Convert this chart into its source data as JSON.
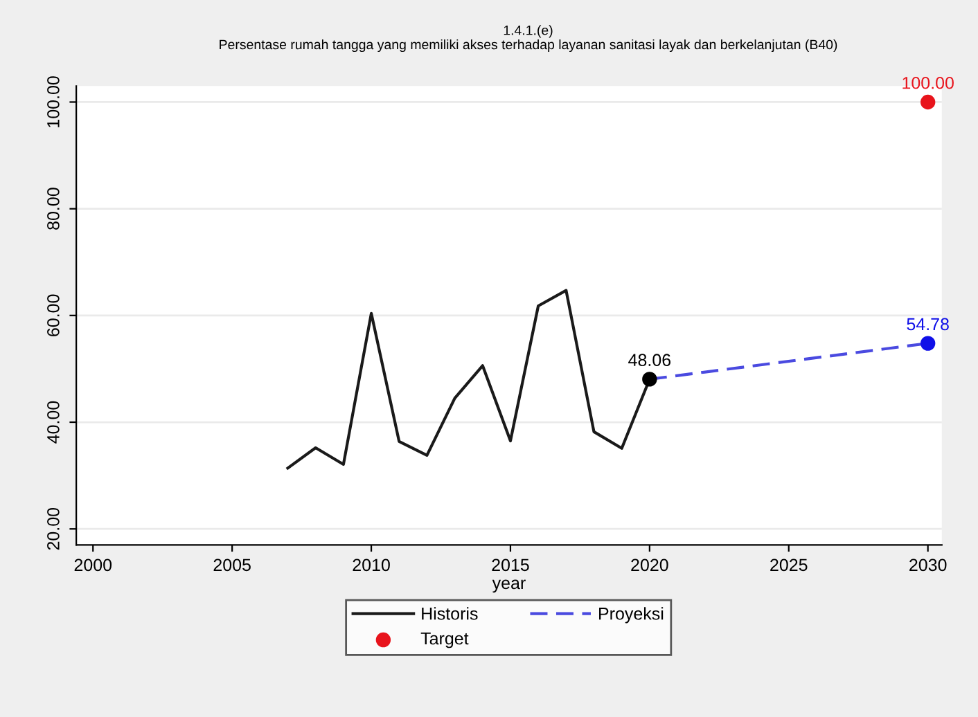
{
  "chart_data": {
    "type": "line",
    "title": "1.4.1.(e)",
    "subtitle": "Persentase rumah tangga yang memiliki akses terhadap layanan sanitasi layak dan berkelanjutan (B40)",
    "xlabel": "year",
    "xlim": [
      1999.4,
      2030.5
    ],
    "xticks": [
      2000,
      2005,
      2010,
      2015,
      2020,
      2025,
      2030
    ],
    "ylim": [
      17,
      103
    ],
    "yticks": [
      {
        "value": 20,
        "label": "20.00"
      },
      {
        "value": 40,
        "label": "40.00"
      },
      {
        "value": 60,
        "label": "60.00"
      },
      {
        "value": 80,
        "label": "80.00"
      },
      {
        "value": 100,
        "label": "100.00"
      }
    ],
    "grid": "y",
    "legend": "bottom",
    "series": [
      {
        "name": "Historis",
        "color": "#1a1a1a",
        "x": [
          2007,
          2008,
          2009,
          2010,
          2011,
          2012,
          2013,
          2014,
          2015,
          2016,
          2017,
          2018,
          2019,
          2020
        ],
        "values": [
          31.4,
          35.2,
          32.1,
          60.4,
          36.4,
          33.8,
          44.5,
          50.6,
          36.5,
          61.8,
          64.7,
          38.2,
          35.1,
          48.06
        ]
      },
      {
        "name": "Proyeksi",
        "line_style": "dashed",
        "color": "#4a4ae0",
        "x": [
          2020,
          2030
        ],
        "values": [
          48.06,
          54.78
        ]
      },
      {
        "name": "Target",
        "type": "scatter",
        "marker": "circle",
        "color": "#e8141c",
        "x": [
          2030
        ],
        "values": [
          100.0
        ],
        "value_labels": [
          "100.00"
        ]
      },
      {
        "type": "scatter",
        "marker": "circle",
        "color": "#000000",
        "x": [
          2020
        ],
        "values": [
          48.06
        ],
        "value_labels": [
          "48.06"
        ]
      },
      {
        "type": "scatter",
        "marker": "circle",
        "color": "#1010e8",
        "x": [
          2030
        ],
        "values": [
          54.78
        ],
        "value_labels": [
          "54.78"
        ]
      }
    ]
  }
}
